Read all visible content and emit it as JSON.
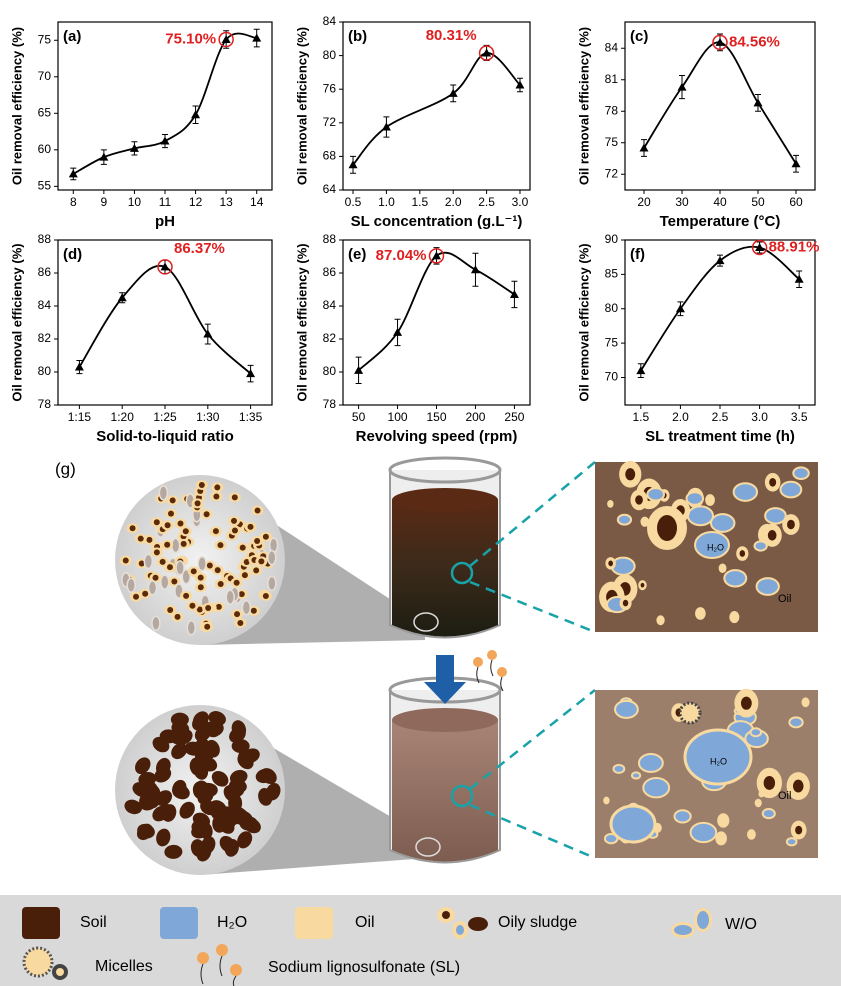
{
  "chart_data": [
    {
      "type": "line",
      "label": "(a)",
      "x": [
        8,
        9,
        10,
        11,
        12,
        13,
        14
      ],
      "values": [
        56.7,
        59,
        60.2,
        61.2,
        64.8,
        75.1,
        75.3
      ],
      "errors": [
        0.8,
        1,
        0.9,
        0.9,
        1.2,
        1.2,
        1.2
      ],
      "value_labels": [
        null,
        null,
        null,
        null,
        null,
        "75.10%",
        null
      ],
      "xlim": [
        7.5,
        14.5
      ],
      "xticks": [
        8,
        9,
        10,
        11,
        12,
        13,
        14
      ],
      "ylim": [
        54.5,
        77.5
      ],
      "yticks": [
        55,
        60,
        65,
        70,
        75
      ],
      "xlabel": "pH",
      "ylabel": "Oil removal efficiency (%)",
      "color": "#000000",
      "annotation_color": "#e02020"
    },
    {
      "type": "line",
      "label": "(b)",
      "x": [
        0.5,
        1,
        2,
        2.5,
        3
      ],
      "values": [
        67,
        71.5,
        75.5,
        80.31,
        76.5
      ],
      "errors": [
        1,
        1.2,
        1,
        0.9,
        0.8
      ],
      "value_labels": [
        null,
        null,
        null,
        "80.31%",
        null
      ],
      "xlim": [
        0.35,
        3.15
      ],
      "xticks": [
        0.5,
        {
          "value": 1,
          "label": "1.0"
        },
        1.5,
        {
          "value": 2,
          "label": "2.0"
        },
        2.5,
        {
          "value": 3,
          "label": "3.0"
        }
      ],
      "ylim": [
        64,
        84
      ],
      "yticks": [
        64,
        68,
        72,
        76,
        80,
        84
      ],
      "xlabel": "SL concentration (g.L⁻¹)",
      "ylabel": "Oil removal efficiency (%)",
      "color": "#000000",
      "annotation_color": "#e02020"
    },
    {
      "type": "line",
      "label": "(c)",
      "x": [
        20,
        30,
        40,
        50,
        60
      ],
      "values": [
        74.5,
        80.3,
        84.56,
        78.8,
        73
      ],
      "errors": [
        0.8,
        1.1,
        0.8,
        0.8,
        0.8
      ],
      "value_labels": [
        null,
        null,
        "84.56%",
        null,
        null
      ],
      "xlim": [
        15,
        65
      ],
      "xticks": [
        20,
        30,
        40,
        50,
        60
      ],
      "ylim": [
        70.5,
        86.5
      ],
      "yticks": [
        72,
        75,
        78,
        81,
        84
      ],
      "xlabel": "Temperature (°C)",
      "ylabel": "Oil removal efficiency (%)",
      "color": "#000000",
      "annotation_color": "#e02020"
    },
    {
      "type": "line",
      "label": "(d)",
      "categories": [
        "1:15",
        "1:20",
        "1:25",
        "1:30",
        "1:35"
      ],
      "values": [
        80.3,
        84.5,
        86.37,
        82.3,
        79.9
      ],
      "errors": [
        0.4,
        0.3,
        0.4,
        0.6,
        0.5
      ],
      "value_labels": [
        null,
        null,
        "86.37%",
        null,
        null
      ],
      "ylim": [
        78,
        88
      ],
      "yticks": [
        78,
        80,
        82,
        84,
        86,
        88
      ],
      "xlabel": "Solid-to-liquid ratio",
      "ylabel": "Oil removal efficiency (%)",
      "color": "#000000",
      "annotation_color": "#e02020"
    },
    {
      "type": "line",
      "label": "(e)",
      "x": [
        50,
        100,
        150,
        200,
        250
      ],
      "values": [
        80.1,
        82.4,
        87.04,
        86.2,
        84.7
      ],
      "errors": [
        0.8,
        0.8,
        0.5,
        1,
        0.8
      ],
      "value_labels": [
        null,
        null,
        "87.04%",
        null,
        null
      ],
      "xlim": [
        30,
        270
      ],
      "xticks": [
        50,
        100,
        150,
        200,
        250
      ],
      "ylim": [
        78,
        88
      ],
      "yticks": [
        78,
        80,
        82,
        84,
        86,
        88
      ],
      "xlabel": "Revolving speed (rpm)",
      "ylabel": "Oil removal efficiency (%)",
      "color": "#000000",
      "annotation_color": "#e02020"
    },
    {
      "type": "line",
      "label": "(f)",
      "x": [
        1.5,
        2,
        2.5,
        3,
        3.5
      ],
      "values": [
        71,
        80,
        87,
        88.91,
        84.3
      ],
      "errors": [
        1,
        1,
        0.8,
        0.8,
        1.2
      ],
      "value_labels": [
        null,
        null,
        null,
        "88.91%",
        null
      ],
      "xlim": [
        1.3,
        3.7
      ],
      "xticks": [
        1.5,
        {
          "value": 2,
          "label": "2.0"
        },
        2.5,
        {
          "value": 3,
          "label": "3.0"
        },
        3.5
      ],
      "ylim": [
        66,
        90
      ],
      "yticks": [
        70,
        75,
        80,
        85,
        90
      ],
      "xlabel": "SL treatment time (h)",
      "ylabel": "Oil removal efficiency (%)",
      "color": "#000000",
      "annotation_color": "#e02020"
    }
  ],
  "diagram": {
    "label": "(g)",
    "top_panel": {
      "water": "H₂O",
      "oil": "Oil"
    },
    "bottom_panel": {
      "water": "H₂O",
      "oil": "Oil"
    },
    "legend": [
      "Soil",
      "H₂O",
      "Oil",
      "Oily sludge",
      "W/O",
      "Micelles",
      "Sodium lignosulfonate (SL)"
    ]
  }
}
